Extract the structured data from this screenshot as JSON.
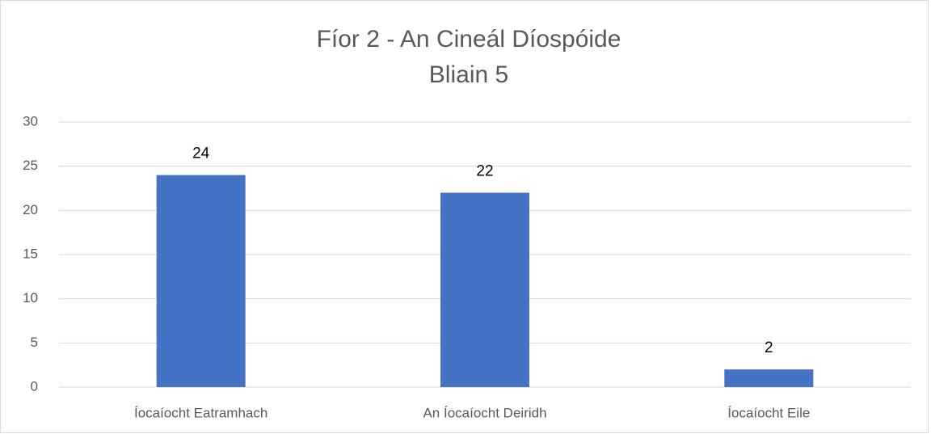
{
  "chart_data": {
    "type": "bar",
    "title": "Fíor 2 - An Cineál Díospóide",
    "subtitle": "Bliain 5",
    "categories": [
      "Íocaíocht Eatramhach",
      "An Íocaíocht Deiridh",
      "Íocaíocht Eile"
    ],
    "values": [
      24,
      22,
      2
    ],
    "color": "#4472c4",
    "ylim": [
      0,
      30
    ],
    "yticks": [
      0,
      5,
      10,
      15,
      20,
      25,
      30
    ],
    "grid": true
  }
}
